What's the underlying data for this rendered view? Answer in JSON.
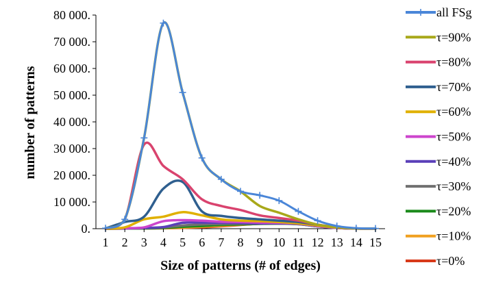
{
  "chart_data": {
    "type": "line",
    "title": "",
    "xlabel": "Size of patterns (# of edges)",
    "ylabel": "number of patterns",
    "x": [
      1,
      2,
      3,
      4,
      5,
      6,
      7,
      8,
      9,
      10,
      11,
      12,
      13,
      14,
      15
    ],
    "xlim": [
      1,
      15
    ],
    "ylim": [
      0,
      80000
    ],
    "y_ticks": [
      0,
      10000,
      20000,
      30000,
      40000,
      50000,
      60000,
      70000,
      80000
    ],
    "y_tick_labels": [
      "0.",
      "10 000.",
      "20 000.",
      "30 000.",
      "40 000.",
      "50 000.",
      "60 000.",
      "70 000.",
      "80 000."
    ],
    "x_tick_labels": [
      "1",
      "2",
      "3",
      "4",
      "5",
      "6",
      "7",
      "8",
      "9",
      "10",
      "11",
      "12",
      "13",
      "14",
      "15"
    ],
    "grid": "none",
    "legend_position": "right",
    "series": [
      {
        "name": "all FSg",
        "color": "#4a86d8",
        "markers": true,
        "values": [
          200,
          3500,
          34000,
          77000,
          51000,
          26500,
          18500,
          14000,
          12500,
          10500,
          6500,
          3000,
          1000,
          200,
          100
        ]
      },
      {
        "name": "τ=90%",
        "color": "#a8a81a",
        "values": [
          200,
          3500,
          34000,
          77000,
          51000,
          26500,
          18500,
          14000,
          8500,
          6000,
          3500,
          1500,
          500,
          100,
          50
        ]
      },
      {
        "name": "τ=80%",
        "color": "#d9436e",
        "values": [
          100,
          3500,
          31500,
          23500,
          18500,
          11000,
          8500,
          7000,
          5000,
          4000,
          3000,
          1500,
          500,
          100,
          50
        ]
      },
      {
        "name": "τ=70%",
        "color": "#2f5f8f",
        "values": [
          100,
          2500,
          4500,
          15000,
          17500,
          6500,
          4800,
          4000,
          3500,
          3000,
          2500,
          1500,
          500,
          100,
          50
        ]
      },
      {
        "name": "τ=60%",
        "color": "#e0b000",
        "values": [
          50,
          500,
          3500,
          4500,
          6200,
          5000,
          3500,
          3000,
          2800,
          2500,
          2000,
          1200,
          400,
          100,
          50
        ]
      },
      {
        "name": "τ=50%",
        "color": "#cc44cc",
        "values": [
          20,
          200,
          500,
          2800,
          3200,
          3000,
          2600,
          2500,
          2300,
          2200,
          1900,
          1000,
          300,
          80,
          30
        ]
      },
      {
        "name": "τ=40%",
        "color": "#5a3fb8",
        "values": [
          10,
          100,
          300,
          600,
          2200,
          2300,
          2200,
          2100,
          2000,
          2000,
          1800,
          900,
          300,
          80,
          30
        ]
      },
      {
        "name": "τ=30%",
        "color": "#707070",
        "values": [
          10,
          100,
          200,
          500,
          1200,
          1600,
          1800,
          1900,
          1900,
          1900,
          1700,
          900,
          300,
          80,
          30
        ]
      },
      {
        "name": "τ=20%",
        "color": "#1a8a1a",
        "values": [
          10,
          50,
          100,
          300,
          700,
          1000,
          1400,
          1600,
          1800,
          1900,
          1700,
          900,
          300,
          80,
          30
        ]
      },
      {
        "name": "τ=10%",
        "color": "#f0a020",
        "values": [
          10,
          50,
          100,
          200,
          400,
          700,
          1100,
          1500,
          1900,
          2300,
          2000,
          1100,
          300,
          80,
          30
        ]
      },
      {
        "name": "τ=0%",
        "color": "#d83a1a",
        "values": [
          10,
          50,
          100,
          150,
          300,
          500,
          900,
          1400,
          1900,
          2400,
          2200,
          1200,
          300,
          80,
          30
        ]
      }
    ]
  }
}
